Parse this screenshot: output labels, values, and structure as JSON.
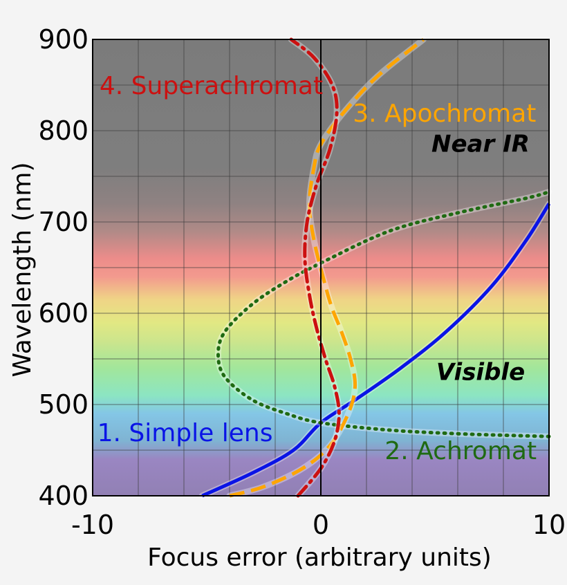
{
  "chart_data": {
    "type": "line",
    "title": "",
    "xlabel": "Focus error (arbitrary units)",
    "ylabel": "Wavelength (nm)",
    "xlim": [
      -10,
      10
    ],
    "ylim": [
      400,
      900
    ],
    "xticks": [
      -10,
      0,
      10
    ],
    "yticks": [
      400,
      500,
      600,
      700,
      800,
      900
    ],
    "grid": true,
    "background": "visible spectrum band (about 400-700 nm) shading to grey in near infrared",
    "region_labels": [
      {
        "text": "Near IR",
        "x": 7,
        "y": 777
      },
      {
        "text": "Visible",
        "x": 7,
        "y": 527
      }
    ],
    "series": [
      {
        "name": "1. Simple lens",
        "color": "#0a14e6",
        "style": "solid",
        "label_pos": {
          "x": -9.8,
          "y": 460
        },
        "x": [
          -5.2,
          -3.0,
          -1.2,
          0.0,
          1.5,
          3.5,
          5.5,
          7.5,
          9.0,
          10.0
        ],
        "y": [
          400,
          425,
          450,
          480,
          505,
          540,
          580,
          630,
          680,
          720
        ]
      },
      {
        "name": "2. Achromat",
        "color": "#1f6a12",
        "style": "dotted",
        "label_pos": {
          "x": 2.8,
          "y": 440
        },
        "x": [
          10.0,
          8.5,
          6.0,
          3.0,
          0.0,
          -1.5,
          -3.0,
          -4.2,
          -4.5,
          -4.2,
          -3.0,
          -1.5,
          0.0,
          3.0,
          6.0,
          9.0,
          10.0
        ],
        "y": [
          465,
          466,
          468,
          472,
          480,
          490,
          505,
          530,
          555,
          580,
          610,
          635,
          655,
          690,
          710,
          726,
          733
        ]
      },
      {
        "name": "3. Apochromat",
        "color": "#ffa500",
        "style": "dashed",
        "label_pos": {
          "x": 1.4,
          "y": 810
        },
        "x": [
          -4.0,
          -2.5,
          -0.8,
          0.4,
          1.2,
          1.5,
          1.3,
          0.9,
          0.5,
          0.2,
          -0.3,
          -0.5,
          -0.3,
          0.0,
          1.0,
          2.5,
          4.5
        ],
        "y": [
          400,
          410,
          430,
          455,
          490,
          520,
          550,
          580,
          605,
          630,
          680,
          720,
          760,
          785,
          820,
          860,
          900
        ]
      },
      {
        "name": "4. Superachromat",
        "color": "#cc1010",
        "style": "dashdot",
        "label_pos": {
          "x": -9.7,
          "y": 840
        },
        "x": [
          -1.0,
          0.0,
          0.6,
          0.8,
          0.6,
          0.2,
          -0.2,
          -0.5,
          -0.7,
          -0.6,
          -0.2,
          0.4,
          0.7,
          0.5,
          -0.3,
          -1.3
        ],
        "y": [
          400,
          430,
          460,
          490,
          520,
          550,
          585,
          620,
          660,
          700,
          740,
          780,
          820,
          850,
          880,
          900
        ]
      }
    ]
  }
}
